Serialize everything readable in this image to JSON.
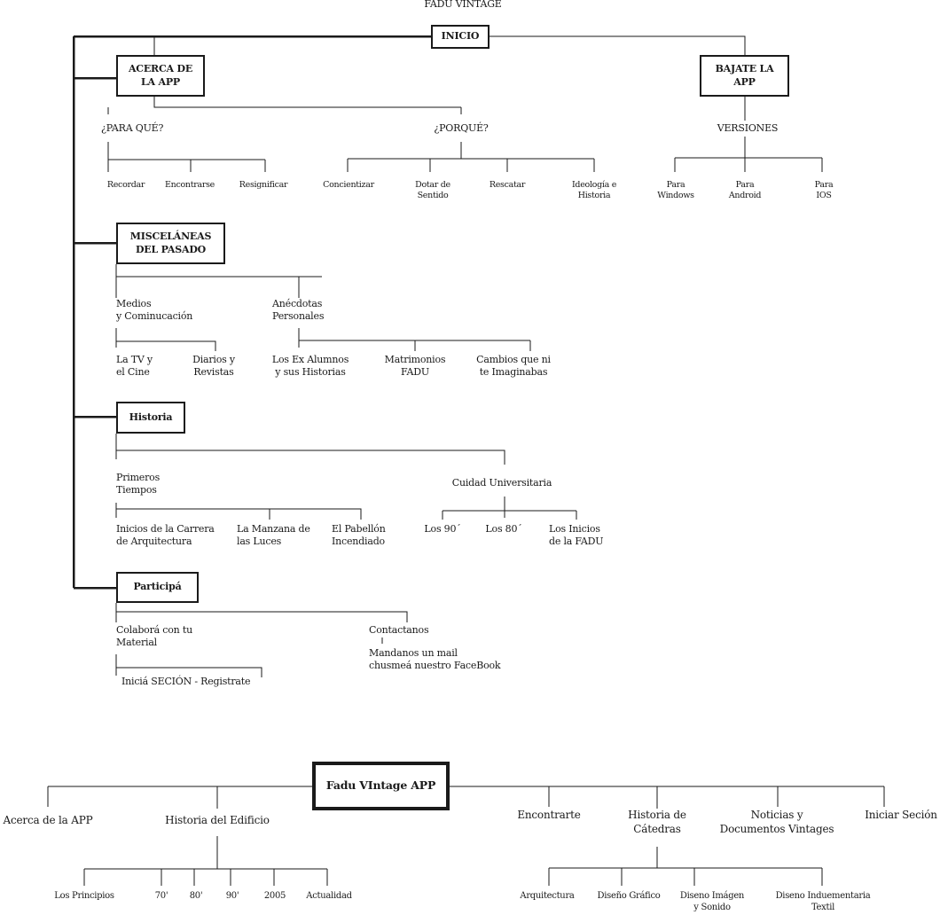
{
  "title": "FADU VINTAGE",
  "upper": {
    "root": "INICIO",
    "about": {
      "box": "ACERCA DE\nLA APP",
      "para_que": {
        "label": "¿PARA QUÉ?",
        "items": [
          "Recordar",
          "Encontrarse",
          "Resignificar"
        ]
      },
      "porque": {
        "label": "¿PORQUÉ?",
        "items": [
          "Concientizar",
          "Dotar de\nSentido",
          "Rescatar",
          "Ideología e\nHistoria"
        ]
      }
    },
    "download": {
      "box": "BAJATE LA\nAPP",
      "versions": {
        "label": "VERSIONES",
        "items": [
          "Para\nWindows",
          "Para\nAndroid",
          "Para\nIOS"
        ]
      }
    },
    "misc": {
      "box": "MISCELÁNEAS\nDEL PASADO",
      "medios": {
        "label": "Medios\ny Cominucación",
        "items": [
          "La TV y\nel Cine",
          "Diarios y\nRevistas"
        ]
      },
      "anecdotas": {
        "label": "Anécdotas\nPersonales",
        "items": [
          "Los Ex Alumnos\ny sus Historias",
          "Matrimonios\nFADU",
          "Cambios que ni\nte Imaginabas"
        ]
      }
    },
    "historia": {
      "box": "Historia",
      "primeros": {
        "label": "Primeros\nTiempos",
        "items": [
          "Inicios de la Carrera\nde Arquitectura",
          "La Manzana de\nlas Luces",
          "El Pabellón\nIncendiado"
        ]
      },
      "cuidad": {
        "label": "Cuidad Universitaria",
        "items": [
          "Los 90´",
          "Los 80´",
          "Los Inicios\nde la FADU"
        ]
      }
    },
    "participa": {
      "box": "Participá",
      "colabora": {
        "label": "Colaborá con tu\nMaterial",
        "items": [
          "Iniciá SECIÓN - Registrate"
        ]
      },
      "contactanos": {
        "label": "Contactanos",
        "items": [
          "Mandanos un mail\nchusmeá nuestro FaceBook"
        ]
      }
    }
  },
  "lower": {
    "root": "Fadu VIntage APP",
    "acerca": "Acerca de la APP",
    "historia_edificio": {
      "label": "Historia del Edificio",
      "items": [
        "Los Principios",
        "70'",
        "80'",
        "90'",
        "2005",
        "Actualidad"
      ]
    },
    "encontrarte": "Encontrarte",
    "catedras": {
      "label": "Historia de\nCátedras",
      "items": [
        "Arquitectura",
        "Diseño Gráfico",
        "Diseno Imágen\ny Sonido",
        "Diseno Induementaria\nTextil"
      ]
    },
    "noticias": "Noticias y\nDocumentos Vintages",
    "iniciar": "Iniciar Seción"
  }
}
